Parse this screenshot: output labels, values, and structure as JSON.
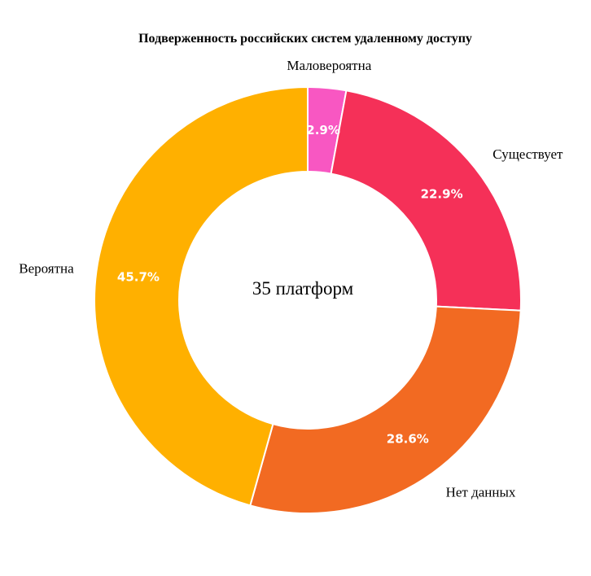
{
  "chart_data": {
    "type": "pie",
    "donut": true,
    "title": "Подверженность российских систем удаленному доступу",
    "center_text": "35 платформ",
    "slices": [
      {
        "label": "Маловероятна",
        "value": 2.9,
        "value_label": "2.9%",
        "color": "#F857C2"
      },
      {
        "label": "Существует",
        "value": 22.9,
        "value_label": "22.9%",
        "color": "#F53058"
      },
      {
        "label": "Нет данных",
        "value": 28.6,
        "value_label": "28.6%",
        "color": "#F26A22"
      },
      {
        "label": "Вероятна",
        "value": 45.7,
        "value_label": "45.7%",
        "color": "#FFB000"
      }
    ],
    "start_angle": "12 o'clock",
    "direction": "clockwise"
  }
}
